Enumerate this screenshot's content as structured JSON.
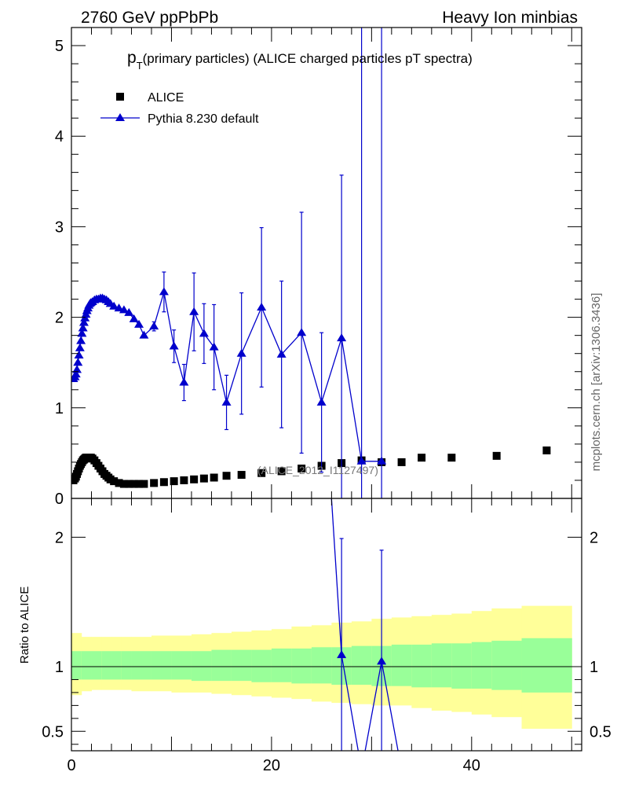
{
  "header": {
    "left": "2760 GeV ppPbPb",
    "right": "Heavy Ion minbias"
  },
  "side_label": "mcplots.cern.ch [arXiv:1306.3436]",
  "chart_data": {
    "type": "scatter",
    "title_main": "p",
    "title_sub": "T",
    "title_rest": "(primary particles) (ALICE charged particles pT spectra)",
    "watermark": "(ALICE_2012_I1127497)",
    "xlim": [
      0,
      51
    ],
    "x_ticks": [
      "0",
      "20",
      "40"
    ],
    "x_tick_values": [
      0,
      20,
      40
    ],
    "main": {
      "ylim": [
        0,
        5.2
      ],
      "y_ticks": [
        "0",
        "1",
        "2",
        "3",
        "4",
        "5"
      ],
      "y_tick_values": [
        0,
        1,
        2,
        3,
        4,
        5
      ],
      "legend": {
        "position": "top-left",
        "entries": [
          {
            "label": "ALICE",
            "marker": "square",
            "color": "#000000"
          },
          {
            "label": "Pythia 8.230 default",
            "marker": "triangle",
            "color": "#0000cc"
          }
        ]
      },
      "series": [
        {
          "name": "ALICE",
          "color": "#000000",
          "marker": "square",
          "points": [
            [
              0.2,
              0.2
            ],
            [
              0.35,
              0.22
            ],
            [
              0.45,
              0.24
            ],
            [
              0.55,
              0.27
            ],
            [
              0.65,
              0.3
            ],
            [
              0.75,
              0.33
            ],
            [
              0.85,
              0.36
            ],
            [
              0.95,
              0.38
            ],
            [
              1.05,
              0.4
            ],
            [
              1.15,
              0.42
            ],
            [
              1.25,
              0.43
            ],
            [
              1.35,
              0.44
            ],
            [
              1.45,
              0.45
            ],
            [
              1.55,
              0.45
            ],
            [
              1.65,
              0.45
            ],
            [
              1.75,
              0.45
            ],
            [
              1.85,
              0.45
            ],
            [
              1.95,
              0.45
            ],
            [
              2.1,
              0.44
            ],
            [
              2.3,
              0.42
            ],
            [
              2.5,
              0.39
            ],
            [
              2.7,
              0.36
            ],
            [
              2.9,
              0.33
            ],
            [
              3.1,
              0.3
            ],
            [
              3.3,
              0.27
            ],
            [
              3.5,
              0.25
            ],
            [
              3.7,
              0.23
            ],
            [
              3.9,
              0.21
            ],
            [
              4.25,
              0.19
            ],
            [
              4.75,
              0.17
            ],
            [
              5.25,
              0.16
            ],
            [
              5.75,
              0.16
            ],
            [
              6.25,
              0.16
            ],
            [
              6.75,
              0.16
            ],
            [
              7.25,
              0.16
            ],
            [
              8.25,
              0.17
            ],
            [
              9.25,
              0.18
            ],
            [
              10.25,
              0.19
            ],
            [
              11.25,
              0.2
            ],
            [
              12.25,
              0.21
            ],
            [
              13.25,
              0.22
            ],
            [
              14.25,
              0.23
            ],
            [
              15.5,
              0.25
            ],
            [
              17,
              0.26
            ],
            [
              19,
              0.28
            ],
            [
              21,
              0.3
            ],
            [
              23,
              0.33
            ],
            [
              25,
              0.36
            ],
            [
              27,
              0.39
            ],
            [
              29,
              0.42
            ],
            [
              31,
              0.4
            ],
            [
              33,
              0.4
            ],
            [
              35,
              0.45
            ],
            [
              38,
              0.45
            ],
            [
              42.5,
              0.47
            ],
            [
              47.5,
              0.53
            ]
          ]
        },
        {
          "name": "Pythia 8.230 default",
          "color": "#0000cc",
          "marker": "triangle",
          "points": [
            [
              0.2,
              1.32
            ],
            [
              0.35,
              1.34
            ],
            [
              0.45,
              1.37
            ],
            [
              0.55,
              1.42
            ],
            [
              0.65,
              1.5
            ],
            [
              0.75,
              1.58
            ],
            [
              0.85,
              1.66
            ],
            [
              0.95,
              1.74
            ],
            [
              1.05,
              1.82
            ],
            [
              1.15,
              1.88
            ],
            [
              1.25,
              1.94
            ],
            [
              1.35,
              1.99
            ],
            [
              1.45,
              2.03
            ],
            [
              1.55,
              2.07
            ],
            [
              1.65,
              2.1
            ],
            [
              1.75,
              2.13
            ],
            [
              1.85,
              2.15
            ],
            [
              1.95,
              2.16
            ],
            [
              2.1,
              2.17
            ],
            [
              2.3,
              2.19
            ],
            [
              2.5,
              2.2
            ],
            [
              2.7,
              2.2
            ],
            [
              2.9,
              2.21
            ],
            [
              3.1,
              2.21
            ],
            [
              3.3,
              2.2
            ],
            [
              3.5,
              2.19
            ],
            [
              3.7,
              2.17
            ],
            [
              3.9,
              2.15
            ],
            [
              4.25,
              2.12
            ],
            [
              4.75,
              2.1
            ],
            [
              5.25,
              2.08
            ],
            [
              5.75,
              2.05
            ],
            [
              6.25,
              1.98
            ],
            [
              6.75,
              1.92
            ],
            [
              7.25,
              1.8
            ],
            [
              8.25,
              1.9
            ],
            [
              9.25,
              2.28
            ],
            [
              10.25,
              1.68
            ],
            [
              11.25,
              1.28
            ],
            [
              12.25,
              2.06
            ],
            [
              13.25,
              1.82
            ],
            [
              14.25,
              1.67
            ],
            [
              15.5,
              1.06
            ],
            [
              17,
              1.6
            ],
            [
              19,
              2.11
            ],
            [
              21,
              1.59
            ],
            [
              23,
              1.83
            ],
            [
              25,
              1.06
            ],
            [
              27,
              1.77
            ],
            [
              29,
              0.41
            ],
            [
              31,
              0.41
            ]
          ],
          "errors": [
            [
              8.25,
              0.05
            ],
            [
              9.25,
              0.22
            ],
            [
              10.25,
              0.18
            ],
            [
              11.25,
              0.2
            ],
            [
              12.25,
              0.43
            ],
            [
              13.25,
              0.33
            ],
            [
              14.25,
              0.47
            ],
            [
              15.5,
              0.3
            ],
            [
              17,
              0.67
            ],
            [
              19,
              0.88
            ],
            [
              21,
              0.81
            ],
            [
              23,
              1.33
            ],
            [
              25,
              0.77
            ],
            [
              27,
              1.8
            ],
            [
              29,
              5.0
            ],
            [
              31,
              5.0
            ]
          ]
        }
      ]
    },
    "ratio": {
      "ylabel": "Ratio to ALICE",
      "ylim": [
        0.35,
        2.3
      ],
      "y_ticks": [
        "0.5",
        "1",
        "2"
      ],
      "y_tick_values": [
        0.5,
        1,
        2
      ],
      "reference": 1,
      "bands": {
        "x_edges": [
          0,
          1,
          2,
          3,
          4,
          5,
          6,
          8,
          10,
          12,
          14,
          16,
          18,
          20,
          22,
          24,
          26,
          28,
          30,
          32,
          34,
          36,
          38,
          40,
          42,
          45,
          50
        ],
        "stat_lo": [
          0.9,
          0.9,
          0.9,
          0.9,
          0.9,
          0.9,
          0.9,
          0.9,
          0.9,
          0.89,
          0.89,
          0.89,
          0.88,
          0.88,
          0.87,
          0.87,
          0.86,
          0.86,
          0.85,
          0.85,
          0.84,
          0.84,
          0.83,
          0.83,
          0.82,
          0.8
        ],
        "stat_hi": [
          1.12,
          1.12,
          1.12,
          1.12,
          1.12,
          1.12,
          1.12,
          1.12,
          1.12,
          1.12,
          1.13,
          1.13,
          1.13,
          1.14,
          1.14,
          1.15,
          1.15,
          1.16,
          1.16,
          1.17,
          1.17,
          1.18,
          1.18,
          1.19,
          1.2,
          1.22
        ],
        "sys_lo": [
          0.78,
          0.81,
          0.82,
          0.82,
          0.82,
          0.82,
          0.81,
          0.81,
          0.8,
          0.8,
          0.79,
          0.78,
          0.77,
          0.76,
          0.75,
          0.73,
          0.72,
          0.71,
          0.7,
          0.7,
          0.68,
          0.66,
          0.65,
          0.63,
          0.61,
          0.52
        ],
        "sys_hi": [
          1.26,
          1.23,
          1.23,
          1.23,
          1.23,
          1.23,
          1.23,
          1.24,
          1.24,
          1.25,
          1.26,
          1.27,
          1.28,
          1.29,
          1.31,
          1.32,
          1.34,
          1.35,
          1.37,
          1.38,
          1.39,
          1.4,
          1.41,
          1.43,
          1.45,
          1.47
        ],
        "stat_color": "#99ff99",
        "sys_color": "#ffff99"
      },
      "series": [
        {
          "name": "Pythia 8.230 default",
          "color": "#0000cc",
          "points": [
            [
              25,
              3.5
            ],
            [
              27,
              1.09
            ],
            [
              29,
              0.2
            ],
            [
              31,
              1.04
            ],
            [
              33,
              0.2
            ]
          ],
          "errors": [
            [
              27,
              0.9
            ],
            [
              31,
              0.86
            ]
          ]
        }
      ]
    }
  }
}
